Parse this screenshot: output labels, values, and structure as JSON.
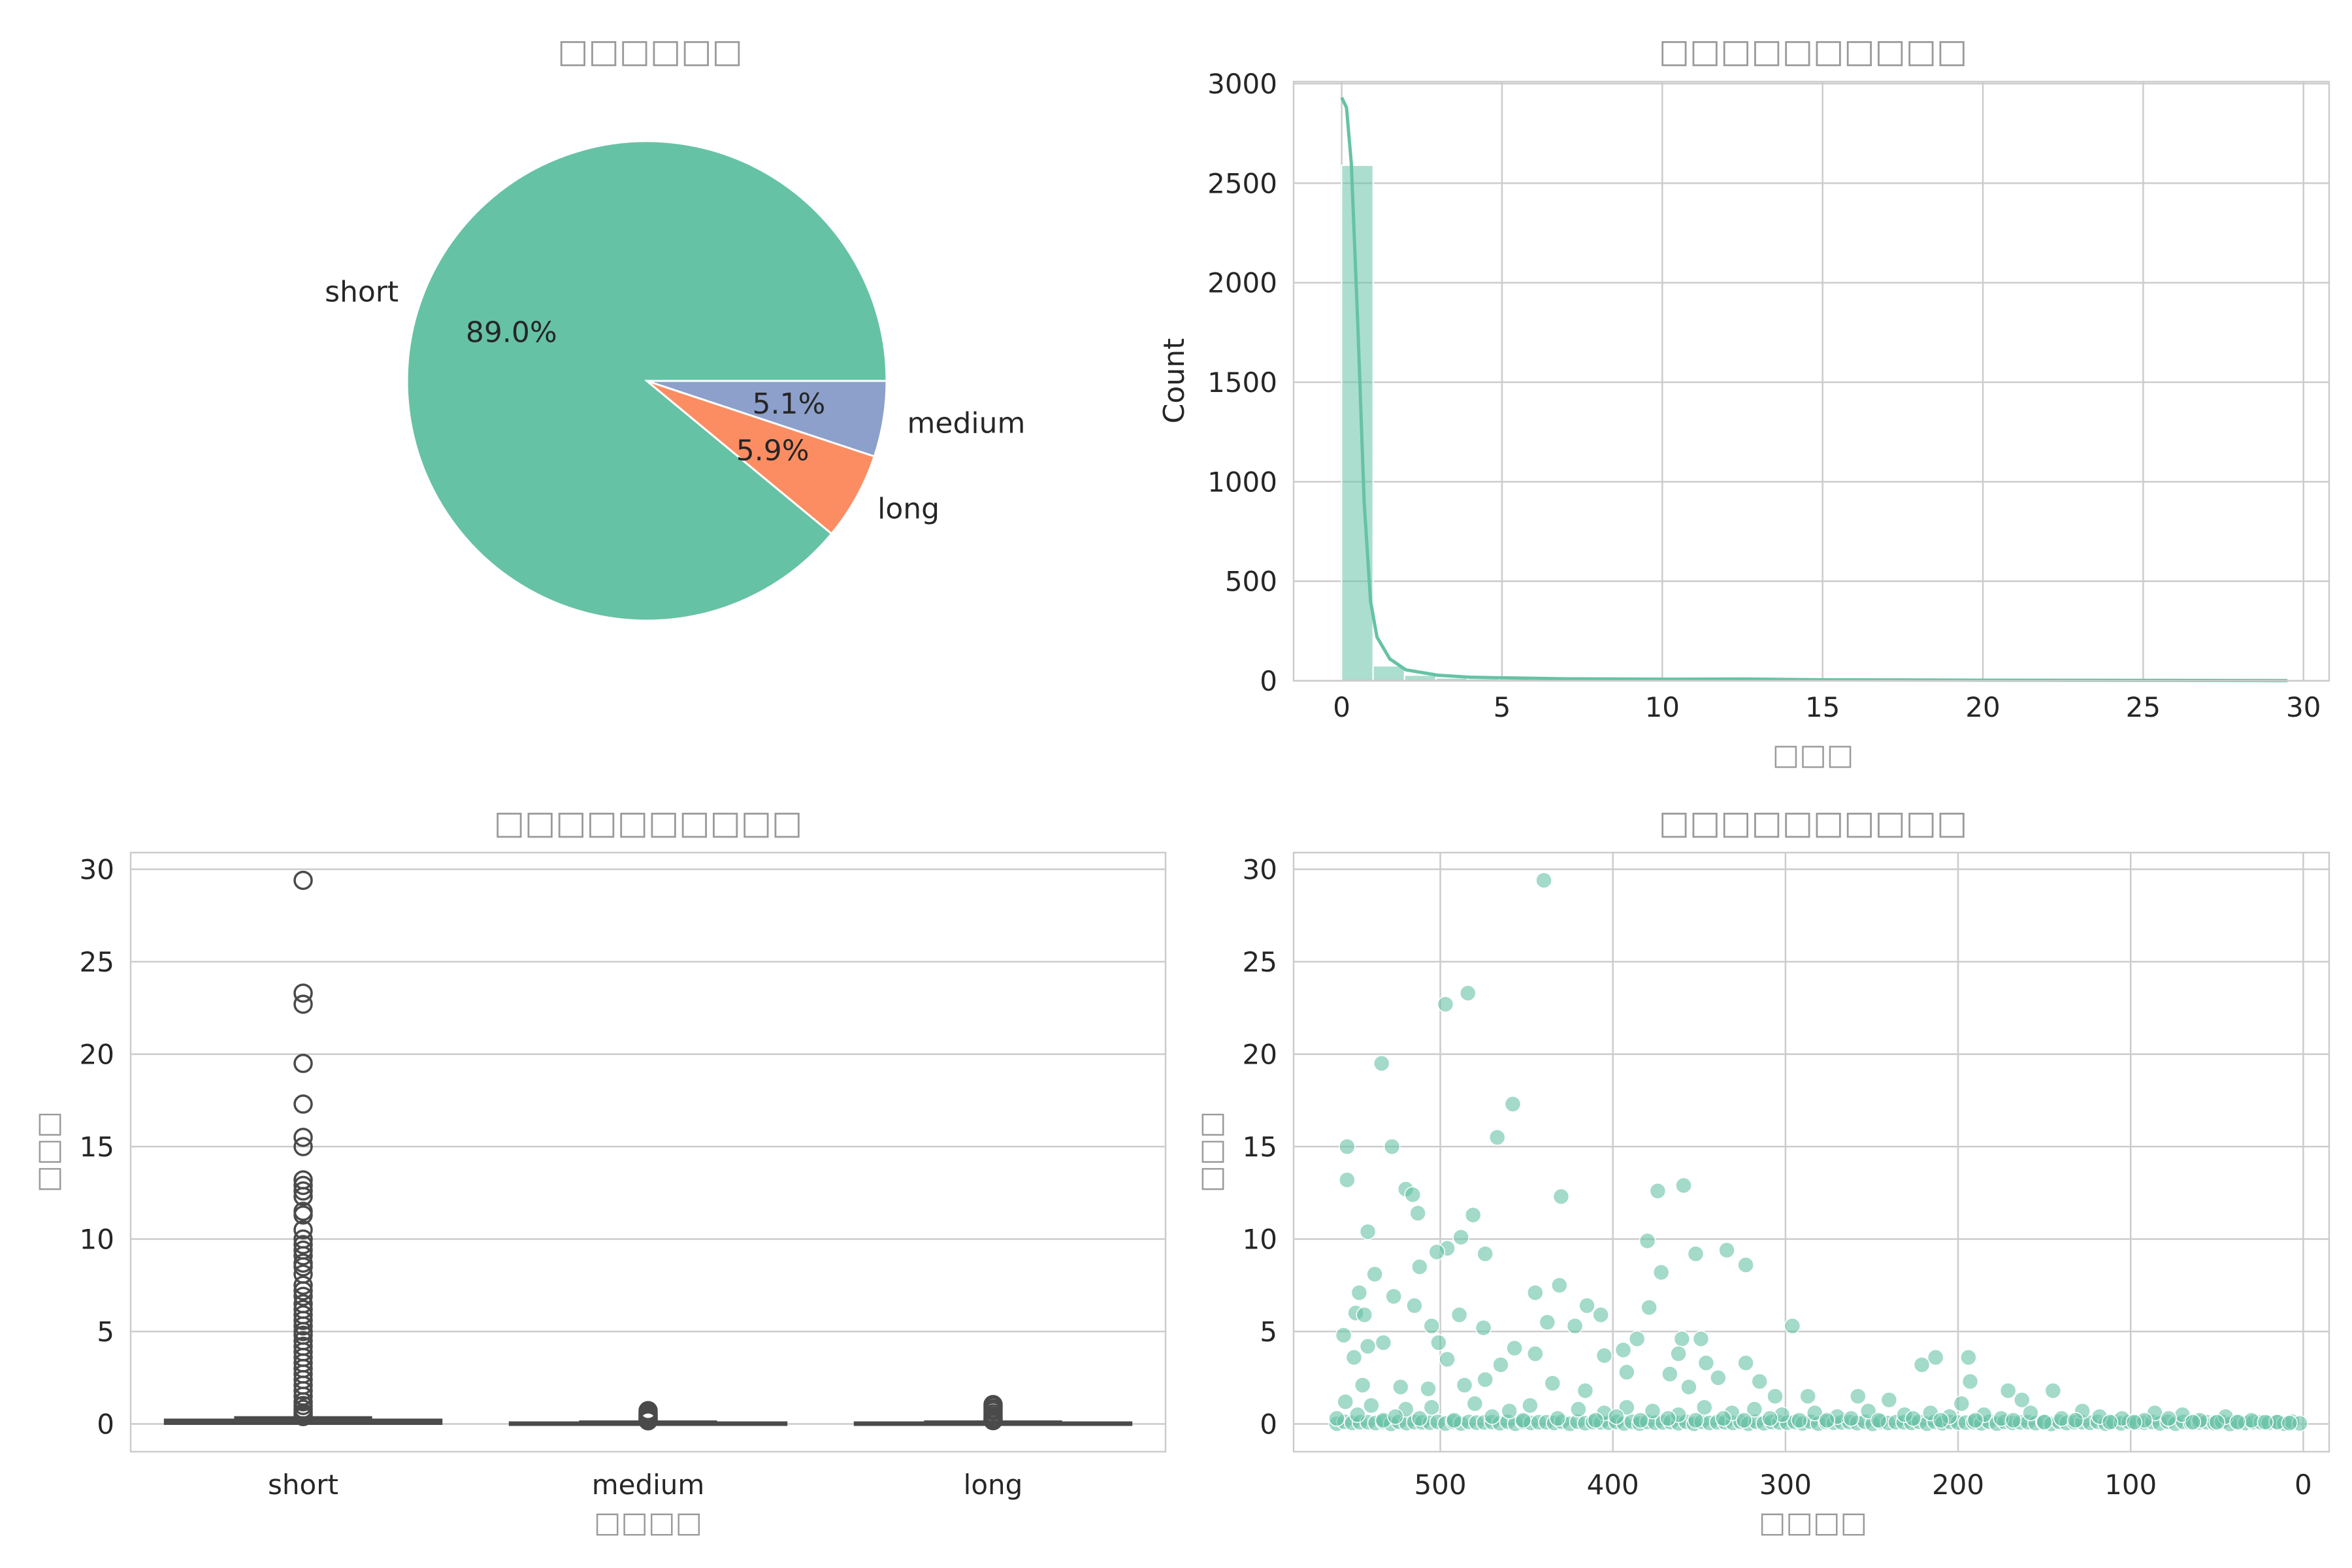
{
  "colors": {
    "short": "#66c2a5",
    "long": "#fc8d62",
    "medium": "#8da0cb",
    "box_line": "#4a4a4a",
    "scatter": "#66c2a5"
  },
  "chart_data": [
    {
      "id": "pie",
      "type": "pie",
      "title": "□□□□□□",
      "slices": [
        {
          "label": "short",
          "value": 89.0,
          "pct_label": "89.0%"
        },
        {
          "label": "medium",
          "value": 5.1,
          "pct_label": "5.1%"
        },
        {
          "label": "long",
          "value": 5.9,
          "pct_label": "5.9%"
        }
      ]
    },
    {
      "id": "hist",
      "type": "bar",
      "title": "□□□□□□□□□□",
      "xlabel": "□□□",
      "ylabel": "Count",
      "xlim": [
        -1.5,
        30.8
      ],
      "ylim": [
        0,
        3010
      ],
      "xticks": [
        0,
        5,
        10,
        15,
        20,
        25,
        30
      ],
      "yticks": [
        0,
        500,
        1000,
        1500,
        2000,
        2500,
        3000
      ],
      "bin_width": 0.98,
      "bins": [
        {
          "x": 0.0,
          "count": 2590
        },
        {
          "x": 0.98,
          "count": 75
        },
        {
          "x": 1.96,
          "count": 28
        },
        {
          "x": 2.94,
          "count": 14
        },
        {
          "x": 3.92,
          "count": 10
        },
        {
          "x": 4.9,
          "count": 9
        },
        {
          "x": 5.88,
          "count": 6
        },
        {
          "x": 6.86,
          "count": 5
        },
        {
          "x": 7.84,
          "count": 4
        },
        {
          "x": 8.82,
          "count": 6
        },
        {
          "x": 9.8,
          "count": 4
        },
        {
          "x": 10.78,
          "count": 2
        },
        {
          "x": 11.76,
          "count": 3
        },
        {
          "x": 12.74,
          "count": 4
        },
        {
          "x": 13.72,
          "count": 1
        },
        {
          "x": 14.7,
          "count": 3
        },
        {
          "x": 15.68,
          "count": 1
        },
        {
          "x": 17.64,
          "count": 1
        },
        {
          "x": 19.6,
          "count": 1
        },
        {
          "x": 22.54,
          "count": 2
        },
        {
          "x": 23.52,
          "count": 1
        },
        {
          "x": 28.42,
          "count": 1
        }
      ],
      "kde": [
        [
          0.0,
          2930
        ],
        [
          0.15,
          2880
        ],
        [
          0.3,
          2600
        ],
        [
          0.5,
          1800
        ],
        [
          0.7,
          900
        ],
        [
          0.9,
          400
        ],
        [
          1.1,
          220
        ],
        [
          1.5,
          110
        ],
        [
          2.0,
          55
        ],
        [
          3.0,
          28
        ],
        [
          4.0,
          18
        ],
        [
          5.0,
          15
        ],
        [
          7.0,
          10
        ],
        [
          10.0,
          8
        ],
        [
          12.5,
          9
        ],
        [
          15.0,
          5
        ],
        [
          20.0,
          3
        ],
        [
          25.0,
          2
        ],
        [
          29.5,
          1
        ]
      ]
    },
    {
      "id": "box",
      "type": "box",
      "title": "□□□□□□□□□□",
      "xlabel": "□□□□",
      "ylabel": "□□□",
      "ylim": [
        -1.5,
        30.9
      ],
      "yticks": [
        0,
        5,
        10,
        15,
        20,
        25,
        30
      ],
      "categories": [
        "short",
        "medium",
        "long"
      ],
      "boxes": [
        {
          "name": "short",
          "q1": 0.02,
          "median": 0.08,
          "q3": 0.22,
          "whisker_low": 0.0,
          "whisker_high": 0.35,
          "outliers": [
            29.4,
            23.3,
            22.7,
            19.5,
            17.3,
            15.5,
            15.0,
            13.2,
            12.9,
            12.6,
            12.3,
            11.5,
            11.3,
            10.5,
            10.0,
            9.7,
            9.4,
            9.1,
            8.7,
            8.5,
            8.1,
            7.5,
            7.2,
            6.9,
            6.5,
            6.2,
            5.9,
            5.6,
            5.3,
            5.0,
            4.8,
            4.5,
            4.2,
            3.9,
            3.6,
            3.3,
            3.0,
            2.7,
            2.4,
            2.1,
            1.8,
            1.5,
            1.2,
            1.0,
            0.8,
            0.6,
            0.5,
            0.4
          ]
        },
        {
          "name": "medium",
          "q1": 0.01,
          "median": 0.03,
          "q3": 0.07,
          "whisker_low": 0.0,
          "whisker_high": 0.12,
          "outliers": [
            0.72,
            0.6,
            0.5,
            0.42,
            0.35,
            0.28,
            0.22,
            0.17
          ]
        },
        {
          "name": "long",
          "q1": 0.01,
          "median": 0.03,
          "q3": 0.07,
          "whisker_low": 0.0,
          "whisker_high": 0.12,
          "outliers": [
            1.05,
            0.95,
            0.82,
            0.7,
            0.55,
            0.42,
            0.32,
            0.24,
            0.18
          ]
        }
      ]
    },
    {
      "id": "scatter",
      "type": "scatter",
      "title": "□□□□□□□□□□",
      "xlabel": "□□□□",
      "ylabel": "□□□",
      "xlim": [
        585,
        -15
      ],
      "ylim": [
        -1.5,
        30.9
      ],
      "xticks": [
        500,
        400,
        300,
        200,
        100,
        0
      ],
      "yticks": [
        0,
        5,
        10,
        15,
        20,
        25,
        30
      ],
      "points": [
        [
          440,
          29.4
        ],
        [
          484,
          23.3
        ],
        [
          497,
          22.7
        ],
        [
          534,
          19.5
        ],
        [
          458,
          17.3
        ],
        [
          467,
          15.5
        ],
        [
          528,
          15.0
        ],
        [
          554,
          15.0
        ],
        [
          554,
          13.2
        ],
        [
          359,
          12.9
        ],
        [
          374,
          12.6
        ],
        [
          520,
          12.7
        ],
        [
          516,
          12.4
        ],
        [
          430,
          12.3
        ],
        [
          513,
          11.4
        ],
        [
          481,
          11.3
        ],
        [
          542,
          10.4
        ],
        [
          488,
          10.1
        ],
        [
          380,
          9.9
        ],
        [
          334,
          9.4
        ],
        [
          496,
          9.5
        ],
        [
          352,
          9.2
        ],
        [
          502,
          9.3
        ],
        [
          474,
          9.2
        ],
        [
          323,
          8.6
        ],
        [
          512,
          8.5
        ],
        [
          372,
          8.2
        ],
        [
          538,
          8.1
        ],
        [
          431,
          7.5
        ],
        [
          547,
          7.1
        ],
        [
          445,
          7.1
        ],
        [
          527,
          6.9
        ],
        [
          379,
          6.3
        ],
        [
          415,
          6.4
        ],
        [
          515,
          6.4
        ],
        [
          549,
          6.0
        ],
        [
          407,
          5.9
        ],
        [
          544,
          5.9
        ],
        [
          489,
          5.9
        ],
        [
          296,
          5.3
        ],
        [
          438,
          5.5
        ],
        [
          422,
          5.3
        ],
        [
          475,
          5.2
        ],
        [
          505,
          5.3
        ],
        [
          556,
          4.8
        ],
        [
          386,
          4.6
        ],
        [
          360,
          4.6
        ],
        [
          349,
          4.6
        ],
        [
          533,
          4.4
        ],
        [
          542,
          4.2
        ],
        [
          501,
          4.4
        ],
        [
          457,
          4.1
        ],
        [
          394,
          4.0
        ],
        [
          362,
          3.8
        ],
        [
          445,
          3.8
        ],
        [
          405,
          3.7
        ],
        [
          550,
          3.6
        ],
        [
          496,
          3.5
        ],
        [
          346,
          3.3
        ],
        [
          213,
          3.6
        ],
        [
          194,
          3.6
        ],
        [
          323,
          3.3
        ],
        [
          465,
          3.2
        ],
        [
          221,
          3.2
        ],
        [
          392,
          2.8
        ],
        [
          367,
          2.7
        ],
        [
          339,
          2.5
        ],
        [
          315,
          2.3
        ],
        [
          193,
          2.3
        ],
        [
          435,
          2.2
        ],
        [
          474,
          2.4
        ],
        [
          545,
          2.1
        ],
        [
          523,
          2.0
        ],
        [
          507,
          1.9
        ],
        [
          486,
          2.1
        ],
        [
          416,
          1.8
        ],
        [
          356,
          2.0
        ],
        [
          306,
          1.5
        ],
        [
          287,
          1.5
        ],
        [
          258,
          1.5
        ],
        [
          171,
          1.8
        ],
        [
          145,
          1.8
        ],
        [
          240,
          1.3
        ],
        [
          198,
          1.1
        ],
        [
          163,
          1.3
        ],
        [
          128,
          0.7
        ],
        [
          86,
          0.6
        ],
        [
          70,
          0.5
        ],
        [
          45,
          0.4
        ],
        [
          555,
          1.2
        ],
        [
          540,
          1.0
        ],
        [
          520,
          0.8
        ],
        [
          505,
          0.9
        ],
        [
          480,
          1.1
        ],
        [
          460,
          0.7
        ],
        [
          448,
          1.0
        ],
        [
          420,
          0.8
        ],
        [
          405,
          0.6
        ],
        [
          392,
          0.9
        ],
        [
          377,
          0.7
        ],
        [
          362,
          0.5
        ],
        [
          347,
          0.9
        ],
        [
          331,
          0.6
        ],
        [
          318,
          0.8
        ],
        [
          302,
          0.5
        ],
        [
          283,
          0.6
        ],
        [
          270,
          0.4
        ],
        [
          252,
          0.7
        ],
        [
          231,
          0.5
        ],
        [
          216,
          0.6
        ],
        [
          205,
          0.4
        ],
        [
          185,
          0.5
        ],
        [
          175,
          0.3
        ],
        [
          158,
          0.6
        ],
        [
          140,
          0.3
        ],
        [
          118,
          0.4
        ],
        [
          105,
          0.3
        ],
        [
          92,
          0.2
        ],
        [
          78,
          0.3
        ],
        [
          60,
          0.2
        ],
        [
          30,
          0.2
        ],
        [
          15,
          0.1
        ],
        [
          560,
          0.3
        ],
        [
          548,
          0.5
        ],
        [
          533,
          0.2
        ],
        [
          526,
          0.4
        ],
        [
          512,
          0.3
        ],
        [
          492,
          0.2
        ],
        [
          470,
          0.4
        ],
        [
          452,
          0.2
        ],
        [
          432,
          0.3
        ],
        [
          410,
          0.2
        ],
        [
          398,
          0.4
        ],
        [
          384,
          0.2
        ],
        [
          368,
          0.3
        ],
        [
          352,
          0.2
        ],
        [
          336,
          0.3
        ],
        [
          324,
          0.2
        ],
        [
          309,
          0.3
        ],
        [
          292,
          0.2
        ],
        [
          276,
          0.2
        ],
        [
          262,
          0.3
        ],
        [
          246,
          0.2
        ],
        [
          226,
          0.3
        ],
        [
          210,
          0.2
        ],
        [
          190,
          0.2
        ],
        [
          168,
          0.2
        ],
        [
          150,
          0.1
        ],
        [
          132,
          0.2
        ],
        [
          112,
          0.1
        ],
        [
          98,
          0.1
        ],
        [
          64,
          0.1
        ],
        [
          50,
          0.1
        ],
        [
          38,
          0.1
        ],
        [
          22,
          0.1
        ],
        [
          8,
          0.05
        ]
      ]
    }
  ]
}
